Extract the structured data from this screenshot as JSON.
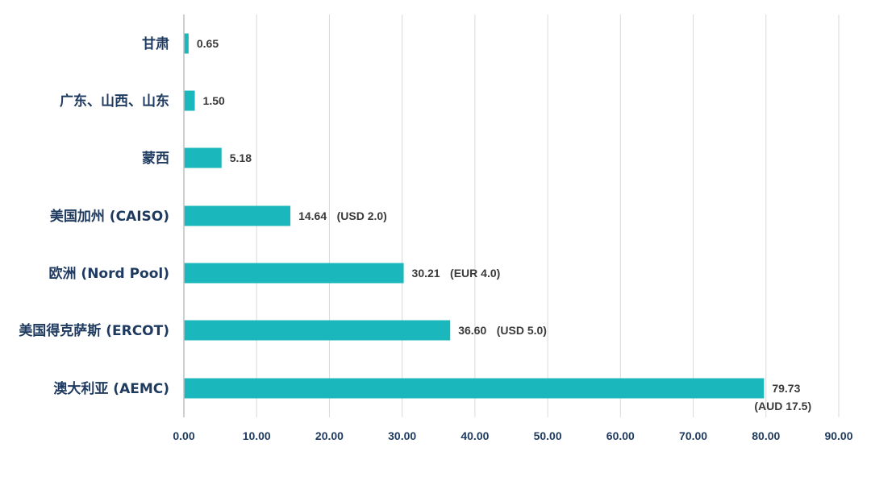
{
  "chart_data": {
    "type": "bar",
    "orientation": "horizontal",
    "categories": [
      "甘肃",
      "广东、山西、山东",
      "蒙西",
      "美国加州 (CAISO)",
      "欧洲 (Nord Pool)",
      "美国得克萨斯 (ERCOT)",
      "澳大利亚 (AEMC)"
    ],
    "values": [
      0.65,
      1.5,
      5.18,
      14.64,
      30.21,
      36.6,
      79.73
    ],
    "data_labels": [
      "0.65",
      "1.50",
      "5.18",
      "14.64",
      "30.21",
      "36.60",
      "79.73"
    ],
    "data_label_notes": [
      "",
      "",
      "",
      "(USD 2.0)",
      "(EUR 4.0)",
      "(USD 5.0)",
      "(AUD 17.5)"
    ],
    "xlim": [
      0,
      90
    ],
    "x_ticks": [
      "0.00",
      "10.00",
      "20.00",
      "30.00",
      "40.00",
      "50.00",
      "60.00",
      "70.00",
      "80.00",
      "90.00"
    ],
    "title": "",
    "xlabel": "",
    "ylabel": "",
    "grid": "vertical",
    "colors": {
      "bar": "#1ab8bd",
      "category_text": "#1f3a5f",
      "value_text": "#3a3a3a",
      "grid": "#d9d9d9"
    }
  }
}
